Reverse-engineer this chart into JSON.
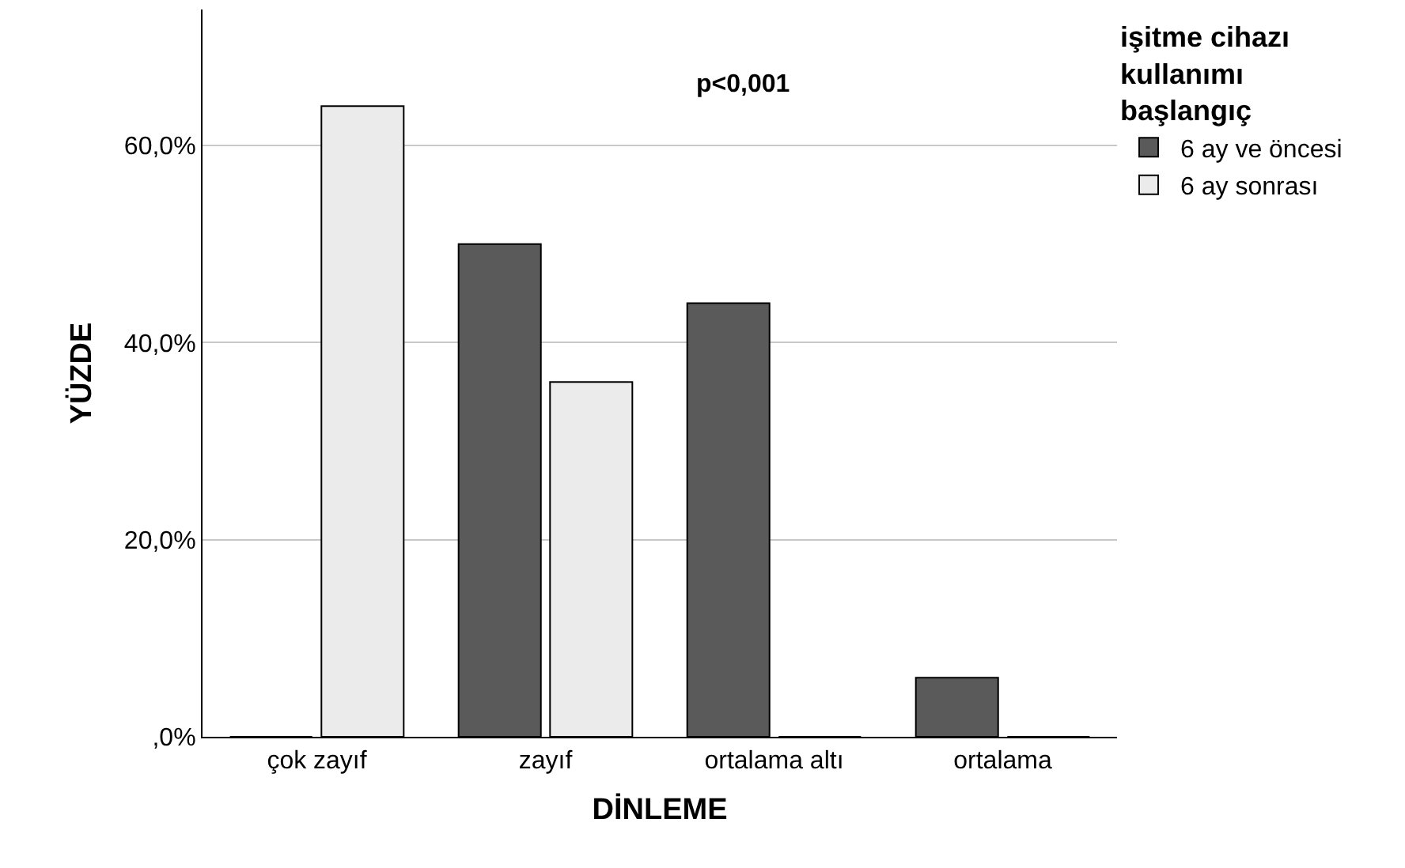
{
  "chart_data": {
    "type": "bar",
    "xlabel": "DİNLEME",
    "ylabel": "YÜZDE",
    "legend_title": "işitme cihazı\nkullanımı\nbaşlangıç",
    "categories": [
      "çok zayıf",
      "zayıf",
      "ortalama altı",
      "ortalama"
    ],
    "series": [
      {
        "name": "6 ay ve öncesi",
        "color": "#5a5a5a",
        "values": [
          0,
          50,
          44,
          6
        ]
      },
      {
        "name": "6 ay sonrası",
        "color": "#ebebeb",
        "values": [
          64,
          36,
          0,
          0
        ]
      }
    ],
    "ylim": [
      0,
      73.8
    ],
    "yticks": [
      {
        "value": 0,
        "label": ",0%"
      },
      {
        "value": 20,
        "label": "20,0%"
      },
      {
        "value": 40,
        "label": "40,0%"
      },
      {
        "value": 60,
        "label": "60,0%"
      }
    ],
    "grid": "y",
    "legend": "top right",
    "annotations": [
      "p<0,001"
    ]
  }
}
